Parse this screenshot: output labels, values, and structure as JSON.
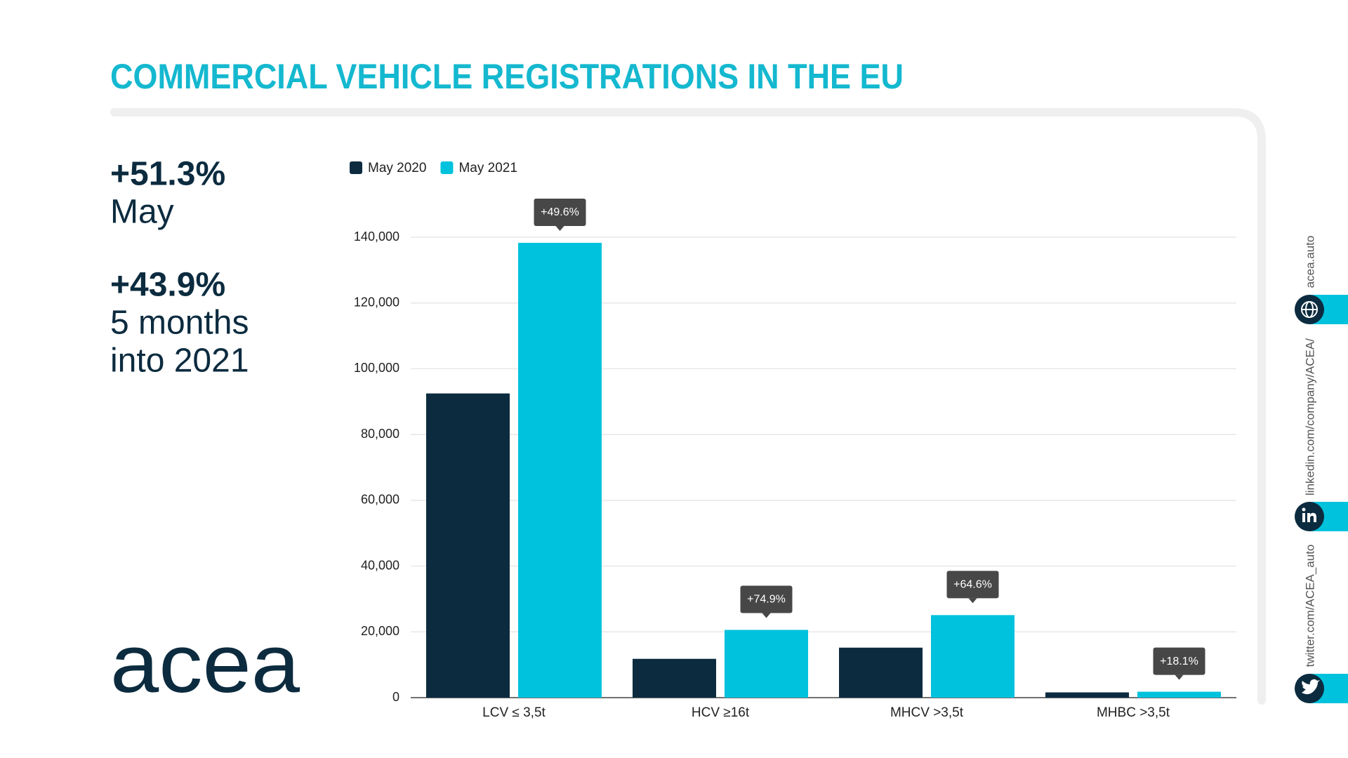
{
  "chart_data": {
    "type": "bar",
    "title": "COMMERCIAL VEHICLE REGISTRATIONS IN THE EU",
    "categories": [
      "LCV ≤ 3,5t",
      "HCV ≥16t",
      "MHCV >3,5t",
      "MHBC >3,5t"
    ],
    "series": [
      {
        "name": "May 2020",
        "color": "#0c2b3f",
        "values": [
          92500,
          11800,
          15200,
          1600
        ]
      },
      {
        "name": "May 2021",
        "color": "#00c2dc",
        "values": [
          138300,
          20600,
          25100,
          1800
        ]
      }
    ],
    "annotations": [
      "+49.6%",
      "+74.9%",
      "+64.6%",
      "+18.1%"
    ],
    "ylim": [
      0,
      140000
    ],
    "yticks": [
      0,
      {
        "value": 20000,
        "label": "20,000"
      },
      {
        "value": 40000,
        "label": "40,000"
      },
      {
        "value": 60000,
        "label": "60,000"
      },
      {
        "value": 80000,
        "label": "80,000"
      },
      {
        "value": 100000,
        "label": "100,000"
      },
      {
        "value": 120000,
        "label": "120,000"
      },
      {
        "value": 140000,
        "label": "140,000"
      }
    ],
    "grid": true,
    "legend": "top-left"
  },
  "highlights": [
    {
      "value": "+51.3%",
      "lines": [
        "May"
      ]
    },
    {
      "value": "+43.9%",
      "lines": [
        "5 months",
        "into 2021"
      ]
    }
  ],
  "logo": "acea",
  "social": [
    "acea.auto",
    "linkedin.com/company/ACEA/",
    "twitter.com/ACEA_auto"
  ]
}
